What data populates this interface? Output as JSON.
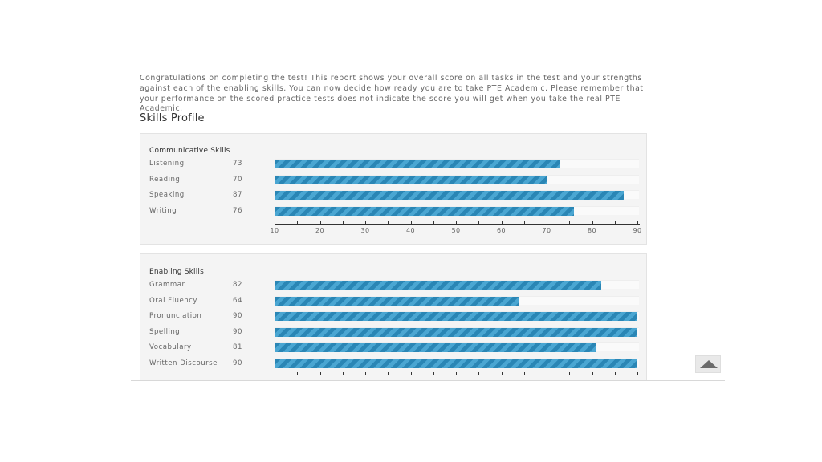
{
  "intro_text": "Congratulations on completing the test! This report shows your overall score on all tasks in the test and your strengths against each of the enabling skills. You can now decide how ready you are to take PTE Academic. Please remember that your performance on the scored practice tests does not indicate the score you will get when you take the real PTE Academic.",
  "section_title": "Skills Profile",
  "chart_data": [
    {
      "type": "bar",
      "orientation": "horizontal",
      "title": "Communicative Skills",
      "categories": [
        "Listening",
        "Reading",
        "Speaking",
        "Writing"
      ],
      "values": [
        73,
        70,
        87,
        76
      ],
      "xlim": [
        10,
        90
      ],
      "ticks": [
        "10",
        "20",
        "30",
        "40",
        "50",
        "60",
        "70",
        "80",
        "90"
      ],
      "bar_color": "#2a86b5"
    },
    {
      "type": "bar",
      "orientation": "horizontal",
      "title": "Enabling Skills",
      "categories": [
        "Grammar",
        "Oral Fluency",
        "Pronunciation",
        "Spelling",
        "Vocabulary",
        "Written Discourse"
      ],
      "values": [
        82,
        64,
        90,
        90,
        81,
        90
      ],
      "xlim": [
        10,
        90
      ],
      "ticks": [],
      "bar_color": "#2a86b5"
    }
  ],
  "scroll_top_icon": "triangle-up-icon"
}
